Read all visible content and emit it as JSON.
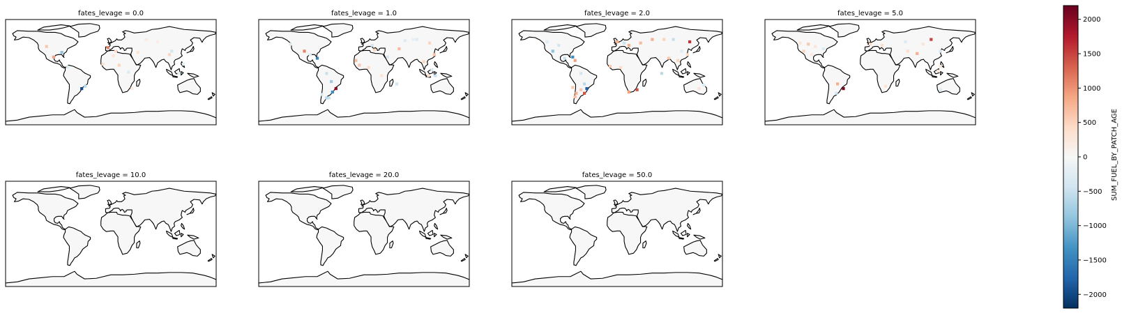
{
  "chart_data": {
    "type": "heatmap",
    "variable": "SUM_FUEL_BY_PATCH_AGE",
    "colorbar": {
      "label": "SUM_FUEL_BY_PATCH_AGE",
      "vmin": -2200,
      "vmax": 2200,
      "ticks": [
        -2000,
        -1500,
        -1000,
        -500,
        0,
        500,
        1000,
        1500,
        2000
      ],
      "tick_labels": [
        "−2000",
        "−1500",
        "−1000",
        "−500",
        "0",
        "500",
        "1000",
        "1500",
        "2000"
      ],
      "colormap": "RdBu_r"
    },
    "panels": [
      {
        "title": "fates_levage = 0.0",
        "levage": 0.0,
        "cells": [
          [
            -110,
            44,
            600
          ],
          [
            -84,
            34,
            -900
          ],
          [
            -98,
            26,
            900
          ],
          [
            -74,
            9,
            -350
          ],
          [
            -50,
            -28,
            -2000
          ],
          [
            -44,
            -24,
            -600
          ],
          [
            -5,
            42,
            1100
          ],
          [
            8,
            36,
            400
          ],
          [
            14,
            12,
            500
          ],
          [
            -14,
            14,
            350
          ],
          [
            4,
            28,
            300
          ],
          [
            30,
            0,
            -300
          ],
          [
            46,
            34,
            300
          ],
          [
            104,
            36,
            -400
          ],
          [
            100,
            30,
            500
          ],
          [
            124,
            14,
            -200
          ],
          [
            116,
            -2,
            -300
          ],
          [
            36,
            -28,
            200
          ],
          [
            80,
            52,
            150
          ],
          [
            60,
            56,
            200
          ]
        ]
      },
      {
        "title": "fates_levage = 1.0",
        "levage": 1.0,
        "cells": [
          [
            -126,
            48,
            -300
          ],
          [
            -80,
            24,
            -1500
          ],
          [
            -102,
            36,
            1100
          ],
          [
            -92,
            30,
            -300
          ],
          [
            -64,
            -2,
            -500
          ],
          [
            -56,
            -16,
            -800
          ],
          [
            -48,
            -28,
            2000
          ],
          [
            -54,
            -34,
            -1400
          ],
          [
            -60,
            -44,
            -500
          ],
          [
            -72,
            -38,
            -300
          ],
          [
            -64,
            -44,
            -600
          ],
          [
            -14,
            20,
            700
          ],
          [
            -8,
            12,
            600
          ],
          [
            8,
            8,
            400
          ],
          [
            14,
            46,
            -400
          ],
          [
            18,
            38,
            500
          ],
          [
            40,
            26,
            -400
          ],
          [
            60,
            40,
            700
          ],
          [
            70,
            54,
            -300
          ],
          [
            84,
            56,
            -200
          ],
          [
            90,
            56,
            -300
          ],
          [
            112,
            50,
            500
          ],
          [
            120,
            30,
            600
          ],
          [
            116,
            4,
            -300
          ],
          [
            110,
            -6,
            400
          ],
          [
            122,
            -6,
            -500
          ],
          [
            102,
            18,
            500
          ],
          [
            56,
            -20,
            -400
          ],
          [
            30,
            -6,
            300
          ]
        ]
      },
      {
        "title": "fates_levage = 2.0",
        "levage": 2.0,
        "cells": [
          [
            -120,
            52,
            -300
          ],
          [
            -110,
            36,
            -900
          ],
          [
            -100,
            46,
            -400
          ],
          [
            -90,
            24,
            -500
          ],
          [
            -72,
            20,
            900
          ],
          [
            -76,
            26,
            -1400
          ],
          [
            -62,
            -2,
            -400
          ],
          [
            -56,
            -20,
            -600
          ],
          [
            -52,
            -28,
            -1800
          ],
          [
            -56,
            -36,
            1400
          ],
          [
            -70,
            -36,
            800
          ],
          [
            -72,
            -42,
            700
          ],
          [
            -76,
            -26,
            600
          ],
          [
            -62,
            -30,
            600
          ],
          [
            -12,
            10,
            600
          ],
          [
            6,
            8,
            400
          ],
          [
            0,
            52,
            800
          ],
          [
            12,
            50,
            -500
          ],
          [
            20,
            46,
            800
          ],
          [
            40,
            50,
            700
          ],
          [
            60,
            56,
            800
          ],
          [
            80,
            56,
            500
          ],
          [
            96,
            56,
            -500
          ],
          [
            124,
            52,
            1600
          ],
          [
            110,
            36,
            -300
          ],
          [
            88,
            24,
            600
          ],
          [
            104,
            20,
            500
          ],
          [
            120,
            30,
            400
          ],
          [
            76,
            -2,
            -600
          ],
          [
            34,
            -30,
            1400
          ],
          [
            20,
            -34,
            900
          ],
          [
            140,
            -28,
            300
          ],
          [
            148,
            -22,
            -300
          ]
        ]
      },
      {
        "title": "fates_levage = 5.0",
        "levage": 5.0,
        "cells": [
          [
            -120,
            50,
            300
          ],
          [
            -106,
            48,
            600
          ],
          [
            -94,
            44,
            300
          ],
          [
            -80,
            40,
            -300
          ],
          [
            -114,
            36,
            500
          ],
          [
            -56,
            -20,
            800
          ],
          [
            -46,
            -28,
            2100
          ],
          [
            -58,
            -36,
            -400
          ],
          [
            0,
            48,
            400
          ],
          [
            20,
            46,
            400
          ],
          [
            60,
            52,
            -300
          ],
          [
            104,
            56,
            1500
          ],
          [
            90,
            48,
            300
          ],
          [
            80,
            32,
            800
          ],
          [
            120,
            36,
            -400
          ],
          [
            64,
            36,
            400
          ],
          [
            120,
            10,
            300
          ],
          [
            116,
            2,
            300
          ],
          [
            26,
            -24,
            300
          ],
          [
            120,
            -30,
            -300
          ],
          [
            -100,
            30,
            200
          ]
        ]
      },
      {
        "title": "fates_levage = 10.0",
        "levage": 10.0,
        "cells": []
      },
      {
        "title": "fates_levage = 20.0",
        "levage": 20.0,
        "cells": []
      },
      {
        "title": "fates_levage = 50.0",
        "levage": 50.0,
        "cells": []
      }
    ]
  }
}
